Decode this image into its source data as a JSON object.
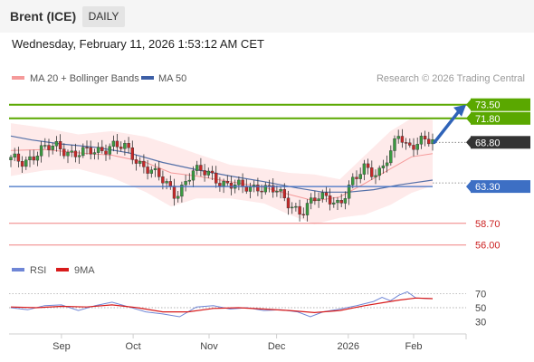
{
  "header": {
    "title": "Brent (ICE)",
    "period_button": "DAILY"
  },
  "datetime": "Wednesday, February 11, 2026 1:53:12 AM CET",
  "credit": "Research © 2026 Trading Central",
  "legend": {
    "bollinger": "MA 20 + Bollinger Bands",
    "ma50": "MA 50",
    "rsi": "RSI",
    "rsi_ma": "9MA"
  },
  "colors": {
    "resistance": "#5aa800",
    "support": "#3d6fc4",
    "minor_support": "#f08080",
    "current": "#333333",
    "bollinger_fill": "#fde3e3",
    "bollinger_line": "#f59a9a",
    "ma50": "#5470a8",
    "candle_up": "#3a9a40",
    "candle_down": "#c62828",
    "rsi": "#6f86d6",
    "rsi_ma": "#d81b1b",
    "arrow": "#2f63b8"
  },
  "chart_data": {
    "type": "candlestick",
    "title": "Brent (ICE)",
    "period": "DAILY",
    "x_ticks": [
      "Sep",
      "Oct",
      "Nov",
      "Dec",
      "2026",
      "Feb"
    ],
    "y_range": [
      54.5,
      75.5
    ],
    "levels": [
      {
        "value": 73.5,
        "label": "73.50",
        "kind": "resistance"
      },
      {
        "value": 71.8,
        "label": "71.80",
        "kind": "resistance"
      },
      {
        "value": 68.8,
        "label": "68.80",
        "kind": "current"
      },
      {
        "value": 63.3,
        "label": "63.30",
        "kind": "support"
      },
      {
        "value": 58.7,
        "label": "58.70",
        "kind": "minor_support"
      },
      {
        "value": 56.0,
        "label": "56.00",
        "kind": "minor_support"
      }
    ],
    "forecast_arrow": {
      "from": 68.8,
      "to": 73.5
    },
    "close_path": [
      [
        0.0,
        66.6
      ],
      [
        0.03,
        66.4
      ],
      [
        0.07,
        67.8
      ],
      [
        0.11,
        68.3
      ],
      [
        0.15,
        67.4
      ],
      [
        0.2,
        67.6
      ],
      [
        0.24,
        68.6
      ],
      [
        0.27,
        68.0
      ],
      [
        0.3,
        66.4
      ],
      [
        0.33,
        65.6
      ],
      [
        0.36,
        63.9
      ],
      [
        0.39,
        62.2
      ],
      [
        0.43,
        65.2
      ],
      [
        0.47,
        64.9
      ],
      [
        0.51,
        63.6
      ],
      [
        0.55,
        63.1
      ],
      [
        0.59,
        63.4
      ],
      [
        0.63,
        62.6
      ],
      [
        0.66,
        61.2
      ],
      [
        0.69,
        60.1
      ],
      [
        0.72,
        61.6
      ],
      [
        0.75,
        62.2
      ],
      [
        0.78,
        61.1
      ],
      [
        0.81,
        63.6
      ],
      [
        0.84,
        66.0
      ],
      [
        0.87,
        64.8
      ],
      [
        0.9,
        67.1
      ],
      [
        0.92,
        70.0
      ],
      [
        0.94,
        68.4
      ],
      [
        0.97,
        68.9
      ],
      [
        1.0,
        68.8
      ]
    ],
    "ma50_path": [
      [
        0.0,
        69.6
      ],
      [
        0.05,
        69.1
      ],
      [
        0.12,
        68.6
      ],
      [
        0.2,
        68.2
      ],
      [
        0.28,
        67.5
      ],
      [
        0.36,
        66.3
      ],
      [
        0.44,
        65.4
      ],
      [
        0.52,
        64.6
      ],
      [
        0.6,
        63.9
      ],
      [
        0.68,
        63.1
      ],
      [
        0.74,
        62.6
      ],
      [
        0.8,
        62.6
      ],
      [
        0.86,
        62.9
      ],
      [
        0.92,
        63.5
      ],
      [
        1.0,
        64.1
      ]
    ],
    "bollinger_mid": [
      [
        0.0,
        67.8
      ],
      [
        0.08,
        67.9
      ],
      [
        0.16,
        67.5
      ],
      [
        0.24,
        67.2
      ],
      [
        0.32,
        66.3
      ],
      [
        0.38,
        65.0
      ],
      [
        0.44,
        64.6
      ],
      [
        0.52,
        63.9
      ],
      [
        0.6,
        63.2
      ],
      [
        0.66,
        62.3
      ],
      [
        0.72,
        61.5
      ],
      [
        0.78,
        62.0
      ],
      [
        0.84,
        63.7
      ],
      [
        0.9,
        65.5
      ],
      [
        0.95,
        67.0
      ],
      [
        1.0,
        67.4
      ]
    ],
    "bollinger_upper": [
      [
        0.0,
        71.2
      ],
      [
        0.08,
        70.6
      ],
      [
        0.16,
        69.8
      ],
      [
        0.24,
        70.2
      ],
      [
        0.32,
        69.5
      ],
      [
        0.38,
        68.5
      ],
      [
        0.44,
        67.4
      ],
      [
        0.52,
        66.0
      ],
      [
        0.6,
        65.5
      ],
      [
        0.66,
        65.0
      ],
      [
        0.72,
        64.8
      ],
      [
        0.78,
        64.2
      ],
      [
        0.84,
        67.2
      ],
      [
        0.9,
        70.2
      ],
      [
        0.95,
        71.8
      ],
      [
        1.0,
        71.6
      ]
    ],
    "bollinger_lower": [
      [
        0.0,
        64.6
      ],
      [
        0.08,
        65.3
      ],
      [
        0.16,
        65.5
      ],
      [
        0.24,
        64.4
      ],
      [
        0.32,
        62.6
      ],
      [
        0.38,
        60.8
      ],
      [
        0.44,
        61.8
      ],
      [
        0.52,
        61.8
      ],
      [
        0.6,
        61.2
      ],
      [
        0.66,
        59.8
      ],
      [
        0.72,
        58.6
      ],
      [
        0.78,
        59.4
      ],
      [
        0.84,
        59.8
      ],
      [
        0.9,
        61.0
      ],
      [
        0.95,
        62.5
      ],
      [
        1.0,
        63.4
      ]
    ],
    "rsi": {
      "y_ticks": [
        70,
        50,
        30
      ],
      "y_range": [
        20,
        80
      ],
      "rsi_path": [
        [
          0.0,
          50
        ],
        [
          0.04,
          47
        ],
        [
          0.08,
          53
        ],
        [
          0.12,
          54
        ],
        [
          0.16,
          46
        ],
        [
          0.2,
          53
        ],
        [
          0.24,
          58
        ],
        [
          0.28,
          51
        ],
        [
          0.32,
          44
        ],
        [
          0.36,
          41
        ],
        [
          0.4,
          37
        ],
        [
          0.44,
          51
        ],
        [
          0.48,
          53
        ],
        [
          0.52,
          48
        ],
        [
          0.56,
          50
        ],
        [
          0.6,
          46
        ],
        [
          0.64,
          47
        ],
        [
          0.68,
          44
        ],
        [
          0.71,
          37
        ],
        [
          0.74,
          44
        ],
        [
          0.78,
          48
        ],
        [
          0.82,
          53
        ],
        [
          0.86,
          59
        ],
        [
          0.88,
          65
        ],
        [
          0.9,
          60
        ],
        [
          0.92,
          68
        ],
        [
          0.94,
          73
        ],
        [
          0.96,
          64
        ],
        [
          1.0,
          63
        ]
      ],
      "ma_path": [
        [
          0.0,
          51
        ],
        [
          0.06,
          50
        ],
        [
          0.12,
          52
        ],
        [
          0.18,
          51
        ],
        [
          0.24,
          54
        ],
        [
          0.3,
          50
        ],
        [
          0.36,
          44
        ],
        [
          0.42,
          44
        ],
        [
          0.48,
          49
        ],
        [
          0.54,
          50
        ],
        [
          0.6,
          48
        ],
        [
          0.66,
          46
        ],
        [
          0.72,
          43
        ],
        [
          0.78,
          46
        ],
        [
          0.84,
          53
        ],
        [
          0.88,
          57
        ],
        [
          0.92,
          61
        ],
        [
          0.96,
          64
        ],
        [
          1.0,
          63
        ]
      ]
    }
  }
}
